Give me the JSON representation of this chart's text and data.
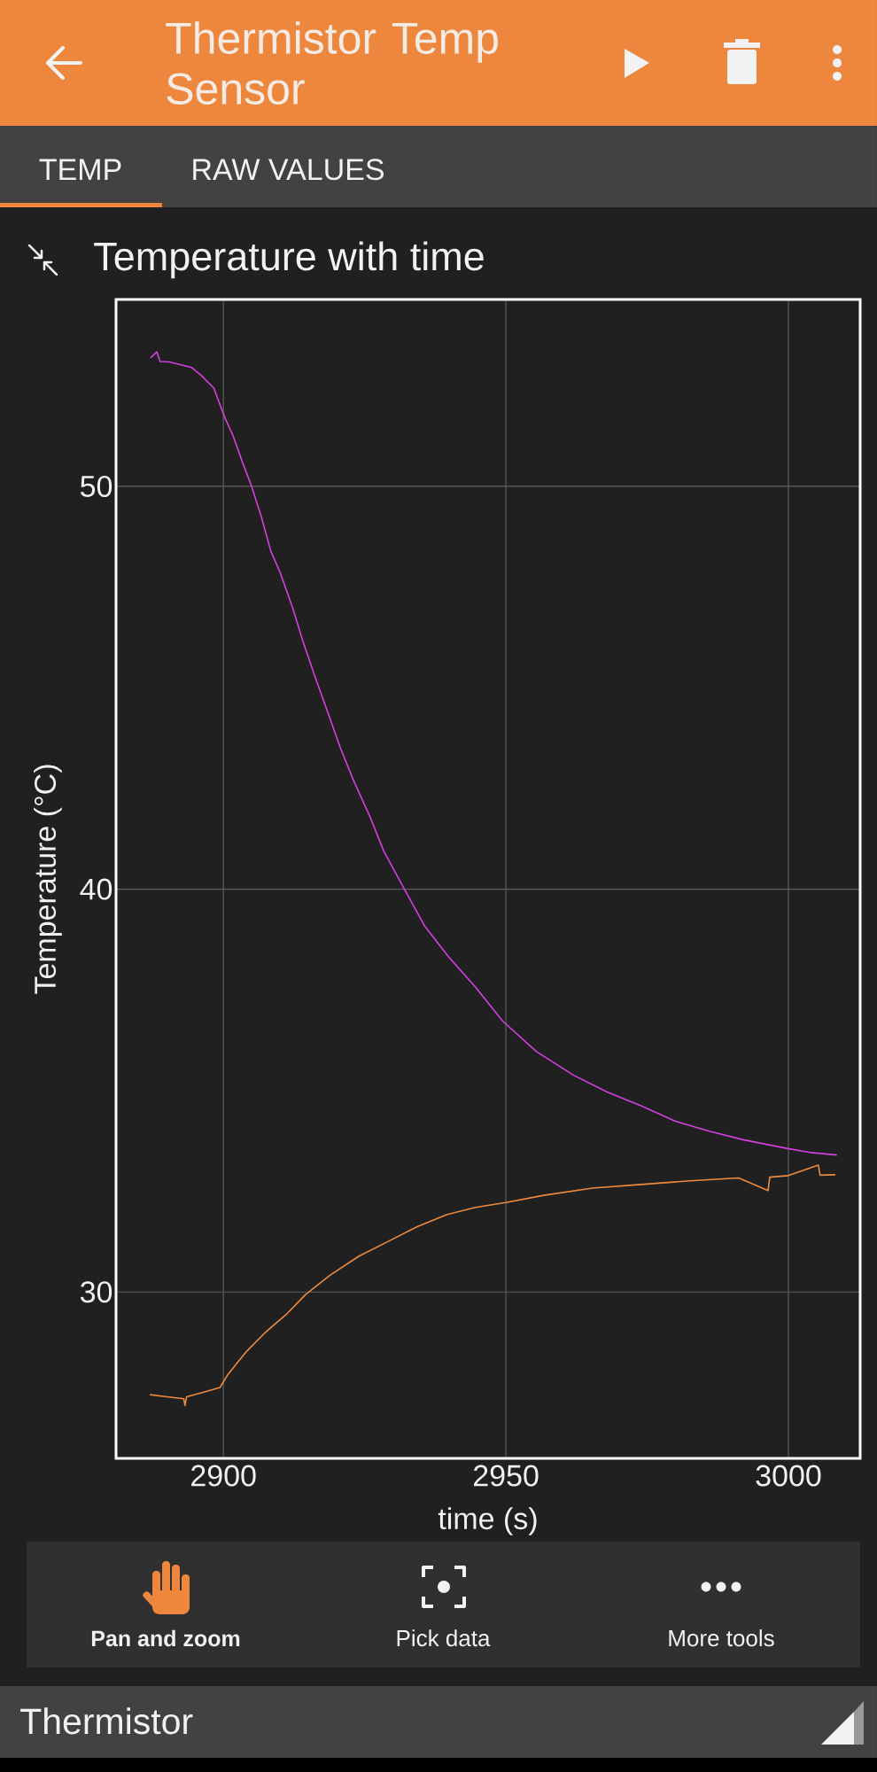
{
  "chart_data": {
    "type": "line",
    "title": "Temperature with time",
    "xlabel": "time (s)",
    "ylabel": "Temperature (°C)",
    "annotations": [
      "Thermistor Temp Sensor",
      "TEMP",
      "RAW VALUES",
      "Pan and zoom",
      "Pick data",
      "More tools",
      "Thermistor"
    ],
    "xlim": [
      2881,
      3012.7
    ],
    "ylim": [
      25.87,
      54.64
    ],
    "xticks": [
      2900,
      2950,
      3000
    ],
    "yticks": [
      30,
      40,
      50
    ],
    "grid": true,
    "series": [
      {
        "color": "#d43fe0",
        "x": [
          2887.1,
          2888.2,
          2888.8,
          2890.4,
          2892.5,
          2894.4,
          2896.1,
          2898.3,
          2900.3,
          2901.7,
          2903.4,
          2905.0,
          2906.7,
          2908.4,
          2910.1,
          2912.3,
          2914.0,
          2916.3,
          2918.5,
          2920.7,
          2923.0,
          2926.0,
          2928.4,
          2932.0,
          2935.6,
          2939.8,
          2944.6,
          2949.4,
          2955.4,
          2962.0,
          2968.0,
          2974.0,
          2980.0,
          2986.0,
          2992.0,
          2999.9,
          3004.1,
          3008.6
        ],
        "values": [
          53.19,
          53.34,
          53.1,
          53.09,
          53.02,
          52.95,
          52.75,
          52.44,
          51.69,
          51.26,
          50.59,
          50.0,
          49.25,
          48.39,
          47.84,
          46.97,
          46.19,
          45.24,
          44.38,
          43.51,
          42.71,
          41.78,
          40.94,
          40.01,
          39.09,
          38.33,
          37.57,
          36.73,
          35.97,
          35.38,
          34.96,
          34.62,
          34.24,
          33.99,
          33.78,
          33.56,
          33.46,
          33.4
        ]
      },
      {
        "color": "#ee8a3d",
        "x": [
          2887.0,
          2890.0,
          2893.0,
          2893.2,
          2893.5,
          2896.4,
          2899.4,
          2900.7,
          2902.5,
          2904.2,
          2907.6,
          2911.1,
          2914.5,
          2918.8,
          2924.0,
          2929.1,
          2934.3,
          2939.5,
          2944.6,
          2950.0,
          2956.7,
          2965.3,
          2973.9,
          2982.6,
          2991.2,
          2996.4,
          2996.7,
          3000.0,
          3005.3,
          3005.6,
          3008.3
        ],
        "values": [
          27.45,
          27.4,
          27.35,
          27.18,
          27.4,
          27.51,
          27.63,
          27.93,
          28.25,
          28.54,
          29.02,
          29.44,
          29.93,
          30.41,
          30.89,
          31.25,
          31.62,
          31.92,
          32.1,
          32.22,
          32.4,
          32.58,
          32.67,
          32.76,
          32.83,
          32.52,
          32.85,
          32.89,
          33.15,
          32.9,
          32.91
        ]
      }
    ]
  }
}
